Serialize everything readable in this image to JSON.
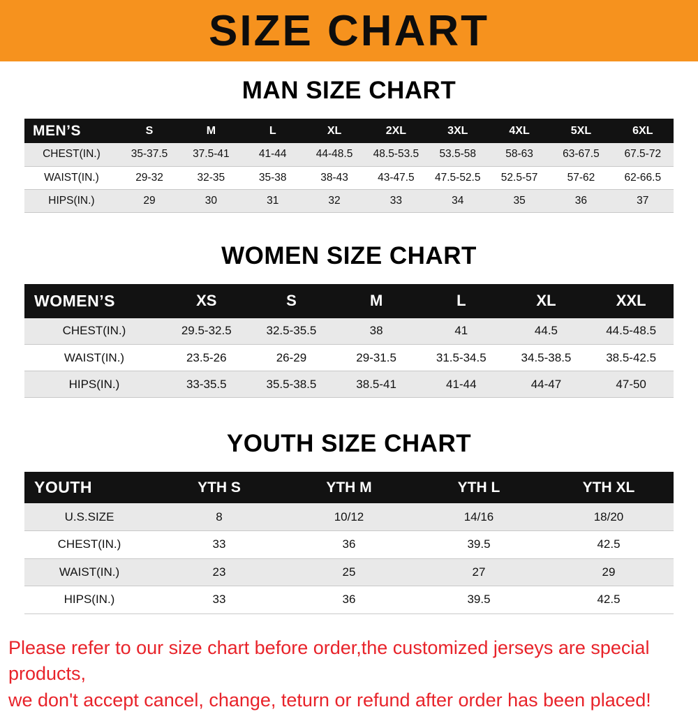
{
  "banner": {
    "title": "SIZE CHART"
  },
  "colors": {
    "banner_bg": "#F6921E",
    "header_bg": "#121212",
    "row_shade": "#e9e9e9",
    "footer_text": "#e8232a"
  },
  "sections": [
    {
      "heading": "MAN SIZE CHART",
      "table": {
        "header": [
          "MEN’S",
          "S",
          "M",
          "L",
          "XL",
          "2XL",
          "3XL",
          "4XL",
          "5XL",
          "6XL"
        ],
        "rows": [
          [
            "CHEST(IN.)",
            "35-37.5",
            "37.5-41",
            "41-44",
            "44-48.5",
            "48.5-53.5",
            "53.5-58",
            "58-63",
            "63-67.5",
            "67.5-72"
          ],
          [
            "WAIST(IN.)",
            "29-32",
            "32-35",
            "35-38",
            "38-43",
            "43-47.5",
            "47.5-52.5",
            "52.5-57",
            "57-62",
            "62-66.5"
          ],
          [
            "HIPS(IN.)",
            "29",
            "30",
            "31",
            "32",
            "33",
            "34",
            "35",
            "36",
            "37"
          ]
        ]
      }
    },
    {
      "heading": "WOMEN SIZE CHART",
      "table": {
        "header": [
          "WOMEN’S",
          "XS",
          "S",
          "M",
          "L",
          "XL",
          "XXL"
        ],
        "rows": [
          [
            "CHEST(IN.)",
            "29.5-32.5",
            "32.5-35.5",
            "38",
            "41",
            "44.5",
            "44.5-48.5"
          ],
          [
            "WAIST(IN.)",
            "23.5-26",
            "26-29",
            "29-31.5",
            "31.5-34.5",
            "34.5-38.5",
            "38.5-42.5"
          ],
          [
            "HIPS(IN.)",
            "33-35.5",
            "35.5-38.5",
            "38.5-41",
            "41-44",
            "44-47",
            "47-50"
          ]
        ]
      }
    },
    {
      "heading": "YOUTH SIZE CHART",
      "table": {
        "header": [
          "YOUTH",
          "YTH S",
          "YTH M",
          "YTH L",
          "YTH XL"
        ],
        "rows": [
          [
            "U.S.SIZE",
            "8",
            "10/12",
            "14/16",
            "18/20"
          ],
          [
            "CHEST(IN.)",
            "33",
            "36",
            "39.5",
            "42.5"
          ],
          [
            "WAIST(IN.)",
            "23",
            "25",
            "27",
            "29"
          ],
          [
            "HIPS(IN.)",
            "33",
            "36",
            "39.5",
            "42.5"
          ]
        ]
      }
    }
  ],
  "footer": {
    "lines": [
      "Please refer to our size chart before order,the customized jerseys are special products,",
      "we don't accept cancel, change, teturn or refund after order has been placed!"
    ]
  }
}
